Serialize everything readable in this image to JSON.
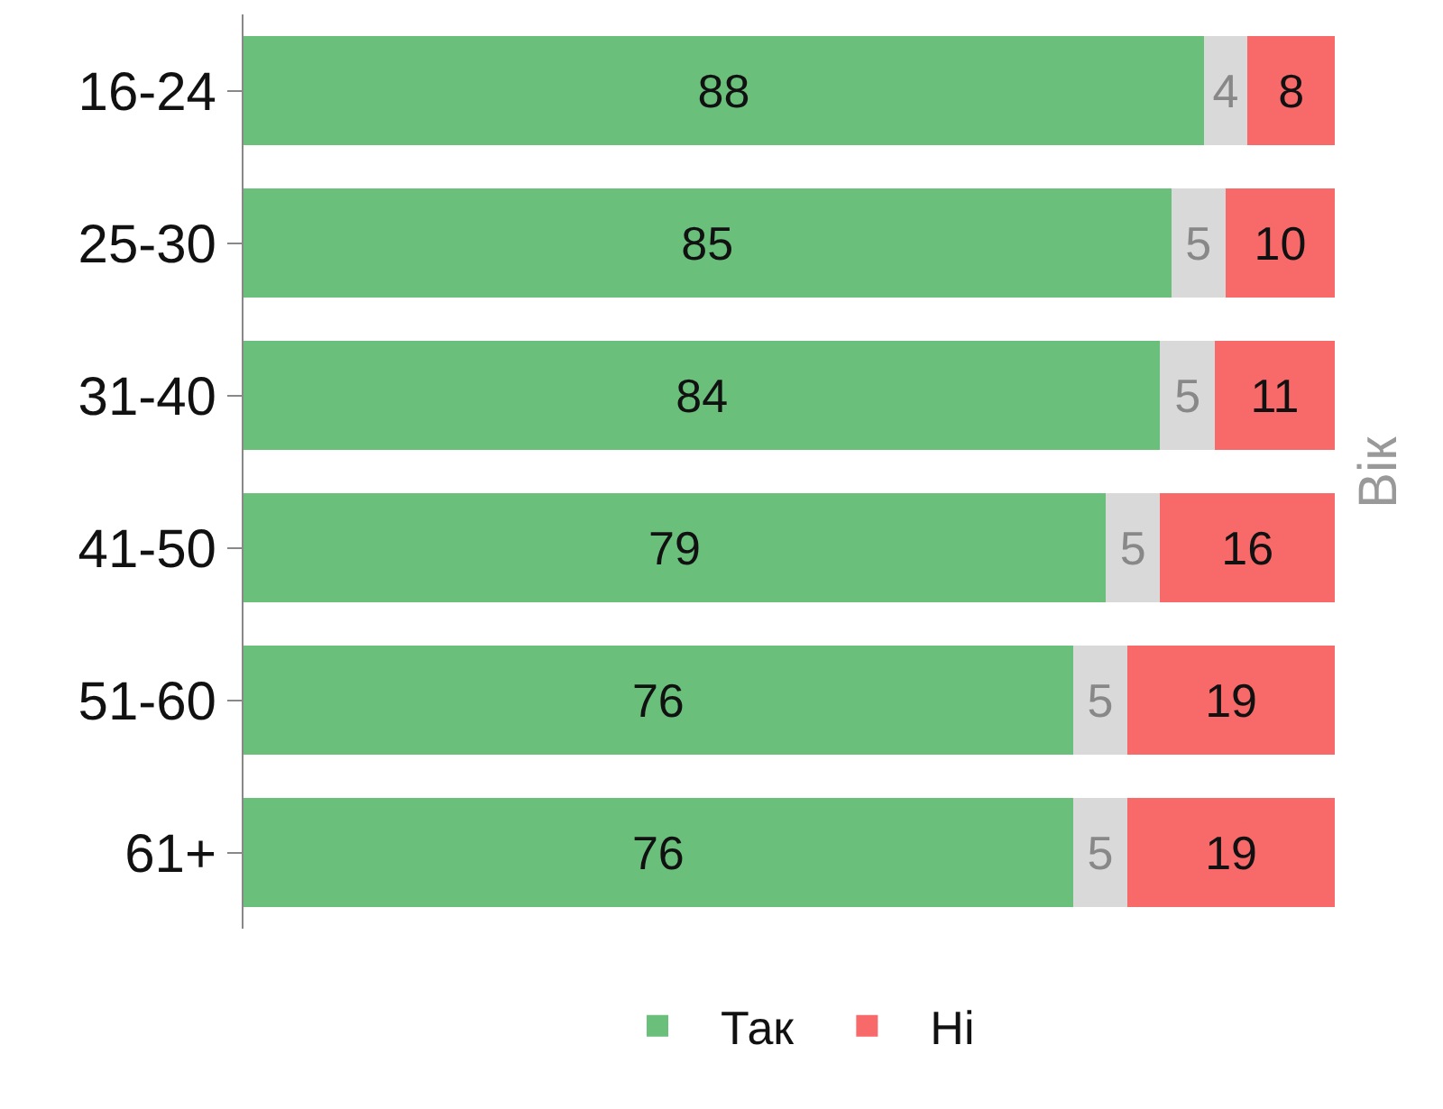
{
  "chart_data": {
    "type": "bar",
    "orientation": "horizontal",
    "stacked": true,
    "ylabel": "Вік",
    "categories": [
      "16-24",
      "25-30",
      "31-40",
      "41-50",
      "51-60",
      "61+"
    ],
    "series": [
      {
        "name": "Так",
        "color": "#6abf7b",
        "values": [
          88,
          85,
          84,
          79,
          76,
          76
        ]
      },
      {
        "color": "#d9d9d9",
        "values": [
          4,
          5,
          5,
          5,
          5,
          5
        ]
      },
      {
        "name": "Ні",
        "color": "#f86a6a",
        "values": [
          8,
          10,
          11,
          16,
          19,
          19
        ]
      }
    ],
    "xlim": [
      0,
      100
    ],
    "tick_labels": "y",
    "data_labels": true,
    "legend": "bottom"
  }
}
